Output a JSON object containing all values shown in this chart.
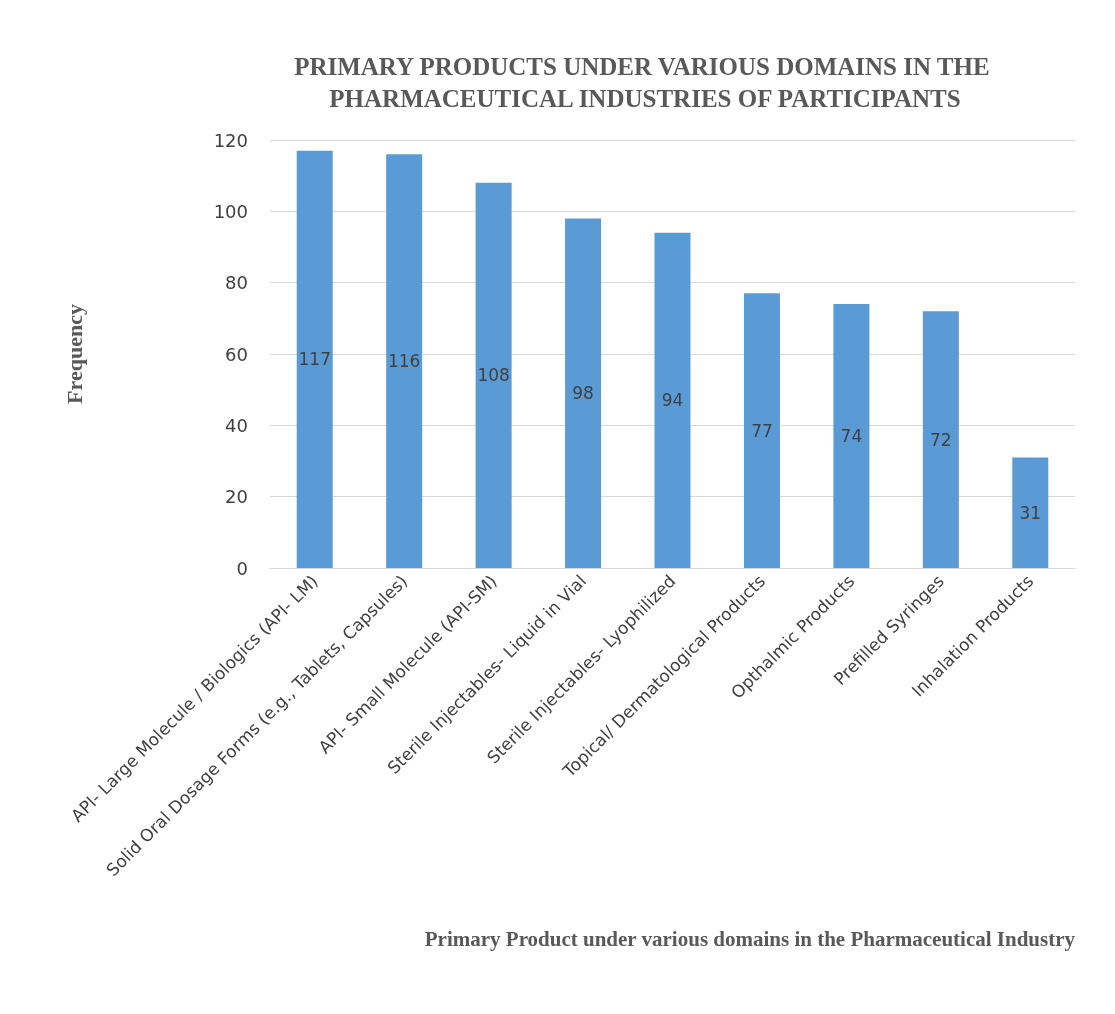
{
  "chart_data": {
    "type": "bar",
    "title": "PRIMARY PRODUCTS UNDER VARIOUS DOMAINS IN THE PHARMACEUTICAL INDUSTRIES OF PARTICIPANTS",
    "xlabel": "Primary Product under various domains in the Pharmaceutical Industry",
    "ylabel": "Frequency",
    "categories": [
      "API- Large Molecule / Biologics (API- LM)",
      "Solid Oral Dosage Forms (e.g., Tablets, Capsules)",
      "API- Small Molecule (API-SM)",
      "Sterile Injectables- Liquid in Vial",
      "Sterile Injectables- Lyophilized",
      "Topical/ Dermatological Products",
      "Opthalmic Products",
      "Prefilled Syringes",
      "Inhalation Products"
    ],
    "values": [
      117,
      116,
      108,
      98,
      94,
      77,
      74,
      72,
      31
    ],
    "color": "#5b9bd5",
    "ylim": [
      0,
      120
    ],
    "yticks": [
      0,
      20,
      40,
      60,
      80,
      100,
      120
    ],
    "grid": "y",
    "data_labels": true
  }
}
